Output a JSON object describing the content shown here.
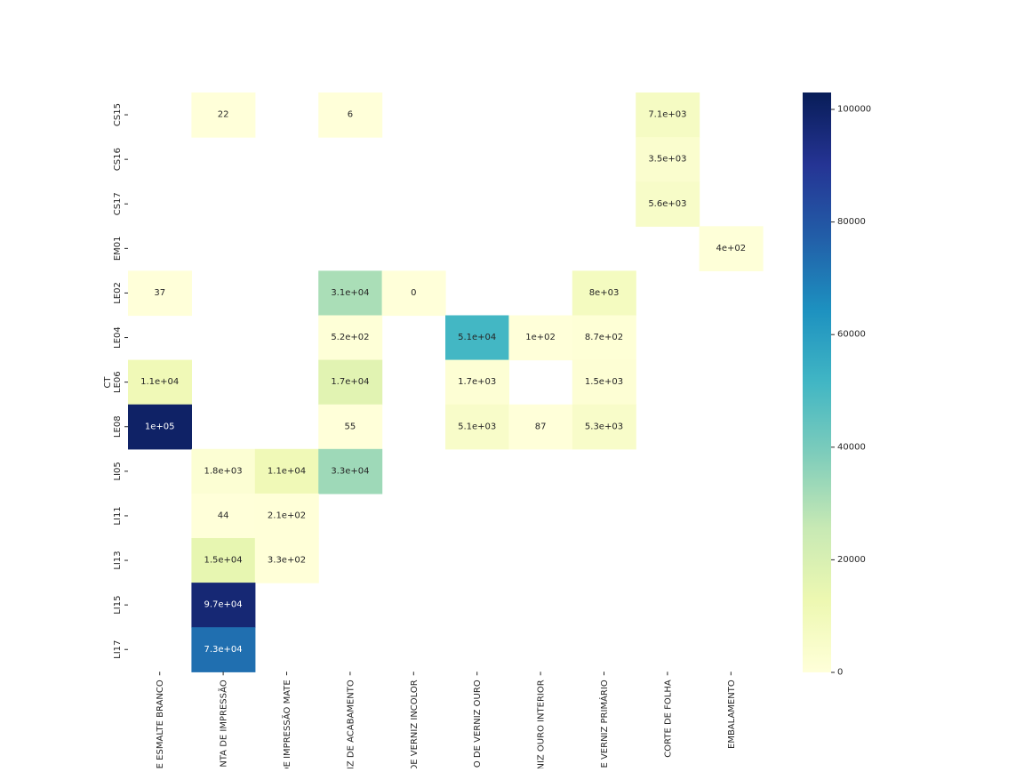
{
  "chart_data": {
    "type": "heatmap",
    "title": "",
    "ylabel": "CT",
    "xlabel": "",
    "rows": [
      "CS15",
      "CS16",
      "CS17",
      "EM01",
      "LE02",
      "LE04",
      "LE06",
      "LE08",
      "LI05",
      "LI11",
      "LI13",
      "LI15",
      "LI17"
    ],
    "columns": [
      "E ESMALTE BRANCO",
      "NTA DE IMPRESSÃO",
      "DE IMPRESSÃO MATE",
      "IZ DE ACABAMENTO",
      "DE VERNIZ INCOLOR",
      "O DE VERNIZ OURO",
      "NIZ OURO INTERIOR",
      "E VERNIZ PRIMÁRIO",
      "CORTE DE FOLHA",
      "EMBALAMENTO"
    ],
    "values": [
      [
        null,
        22,
        null,
        6,
        null,
        null,
        null,
        null,
        7100,
        null
      ],
      [
        null,
        null,
        null,
        null,
        null,
        null,
        null,
        null,
        3500,
        null
      ],
      [
        null,
        null,
        null,
        null,
        null,
        null,
        null,
        null,
        5600,
        null
      ],
      [
        null,
        null,
        null,
        null,
        null,
        null,
        null,
        null,
        null,
        400
      ],
      [
        37,
        null,
        null,
        31000,
        0,
        null,
        null,
        8000,
        null,
        null
      ],
      [
        null,
        null,
        null,
        520,
        null,
        51000,
        100,
        870,
        null,
        null
      ],
      [
        11000,
        null,
        null,
        17000,
        null,
        1700,
        null,
        1500,
        null,
        null
      ],
      [
        100000,
        null,
        null,
        55,
        null,
        5100,
        87,
        5300,
        null,
        null
      ],
      [
        null,
        1800,
        11000,
        33000,
        null,
        null,
        null,
        null,
        null,
        null
      ],
      [
        null,
        44,
        210,
        null,
        null,
        null,
        null,
        null,
        null,
        null
      ],
      [
        null,
        15000,
        330,
        null,
        null,
        null,
        null,
        null,
        null,
        null
      ],
      [
        null,
        97000,
        null,
        null,
        null,
        null,
        null,
        null,
        null,
        null
      ],
      [
        null,
        73000,
        null,
        null,
        null,
        null,
        null,
        null,
        null,
        null
      ]
    ],
    "annotations": [
      [
        null,
        "22",
        null,
        "6",
        null,
        null,
        null,
        null,
        "7.1e+03",
        null
      ],
      [
        null,
        null,
        null,
        null,
        null,
        null,
        null,
        null,
        "3.5e+03",
        null
      ],
      [
        null,
        null,
        null,
        null,
        null,
        null,
        null,
        null,
        "5.6e+03",
        null
      ],
      [
        null,
        null,
        null,
        null,
        null,
        null,
        null,
        null,
        null,
        "4e+02"
      ],
      [
        "37",
        null,
        null,
        "3.1e+04",
        "0",
        null,
        null,
        "8e+03",
        null,
        null
      ],
      [
        null,
        null,
        null,
        "5.2e+02",
        null,
        "5.1e+04",
        "1e+02",
        "8.7e+02",
        null,
        null
      ],
      [
        "1.1e+04",
        null,
        null,
        "1.7e+04",
        null,
        "1.7e+03",
        null,
        "1.5e+03",
        null,
        null
      ],
      [
        "1e+05",
        null,
        null,
        "55",
        null,
        "5.1e+03",
        "87",
        "5.3e+03",
        null,
        null
      ],
      [
        null,
        "1.8e+03",
        "1.1e+04",
        "3.3e+04",
        null,
        null,
        null,
        null,
        null,
        null
      ],
      [
        null,
        "44",
        "2.1e+02",
        null,
        null,
        null,
        null,
        null,
        null,
        null
      ],
      [
        null,
        "1.5e+04",
        "3.3e+02",
        null,
        null,
        null,
        null,
        null,
        null,
        null
      ],
      [
        null,
        "9.7e+04",
        null,
        null,
        null,
        null,
        null,
        null,
        null,
        null
      ],
      [
        null,
        "7.3e+04",
        null,
        null,
        null,
        null,
        null,
        null,
        null,
        null
      ]
    ],
    "colormap": "YlGnBu",
    "vmin": 0,
    "vmax": 103000,
    "colorbar_ticks": [
      0,
      20000,
      40000,
      60000,
      80000,
      100000
    ],
    "colorbar_tick_labels": [
      "0",
      "20000",
      "40000",
      "60000",
      "80000",
      "100000"
    ],
    "colormap_stops": [
      "#ffffd9",
      "#edf8b1",
      "#c7e9b4",
      "#7fcdbb",
      "#41b6c4",
      "#1d91c0",
      "#225ea8",
      "#253494",
      "#081d58"
    ],
    "grid": false,
    "legend": "colorbar-right"
  }
}
